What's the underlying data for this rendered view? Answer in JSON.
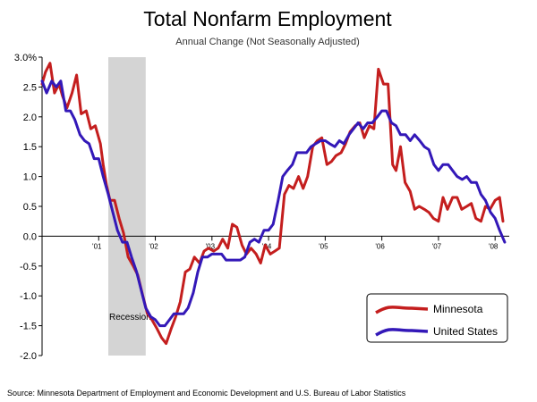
{
  "chart_data": {
    "type": "line",
    "title": "Total Nonfarm Employment",
    "subtitle": "Annual Change (Not Seasonally Adjusted)",
    "source": "Source: Minnesota Department of Employment and Economic Development and U.S. Bureau of Labor Statistics",
    "ylim": [
      -2.0,
      3.0
    ],
    "xlim": [
      2000.0,
      2008.25
    ],
    "y_ticks": [
      3.0,
      2.5,
      2.0,
      1.5,
      1.0,
      0.5,
      0.0,
      -0.5,
      -1.0,
      -1.5,
      -2.0
    ],
    "y_tick_labels": [
      "3.0%",
      "2.5",
      "2.0",
      "1.5",
      "1.0",
      "0.5",
      "0.0",
      "-0.5",
      "-1.0",
      "-1.5",
      "-2.0"
    ],
    "x_ticks": [
      2001,
      2002,
      2003,
      2004,
      2005,
      2006,
      2007,
      2008
    ],
    "x_tick_labels": [
      "'01",
      "'02",
      "'03",
      "'04",
      "'05",
      "'06",
      "'07",
      "'08"
    ],
    "recession": {
      "label": "Recession",
      "start": 2001.17,
      "end": 2001.83
    },
    "grid": false,
    "legend_position": "bottom-right",
    "series": [
      {
        "name": "Minnesota",
        "color": "#c41e1e",
        "points": [
          [
            2000.0,
            2.55
          ],
          [
            2000.06,
            2.75
          ],
          [
            2000.14,
            2.9
          ],
          [
            2000.22,
            2.4
          ],
          [
            2000.3,
            2.55
          ],
          [
            2000.36,
            2.35
          ],
          [
            2000.44,
            2.15
          ],
          [
            2000.53,
            2.4
          ],
          [
            2000.61,
            2.7
          ],
          [
            2000.69,
            2.05
          ],
          [
            2000.78,
            2.1
          ],
          [
            2000.86,
            1.8
          ],
          [
            2000.94,
            1.85
          ],
          [
            2001.03,
            1.55
          ],
          [
            2001.08,
            1.2
          ],
          [
            2001.14,
            0.85
          ],
          [
            2001.2,
            0.6
          ],
          [
            2001.28,
            0.6
          ],
          [
            2001.36,
            0.3
          ],
          [
            2001.44,
            0.05
          ],
          [
            2001.52,
            -0.35
          ],
          [
            2001.61,
            -0.5
          ],
          [
            2001.69,
            -0.65
          ],
          [
            2001.78,
            -1.0
          ],
          [
            2001.86,
            -1.3
          ],
          [
            2001.94,
            -1.4
          ],
          [
            2002.03,
            -1.55
          ],
          [
            2002.11,
            -1.7
          ],
          [
            2002.19,
            -1.8
          ],
          [
            2002.28,
            -1.55
          ],
          [
            2002.36,
            -1.35
          ],
          [
            2002.44,
            -1.1
          ],
          [
            2002.53,
            -0.6
          ],
          [
            2002.61,
            -0.55
          ],
          [
            2002.69,
            -0.35
          ],
          [
            2002.78,
            -0.45
          ],
          [
            2002.86,
            -0.25
          ],
          [
            2002.94,
            -0.2
          ],
          [
            2003.03,
            -0.25
          ],
          [
            2003.11,
            -0.2
          ],
          [
            2003.19,
            -0.05
          ],
          [
            2003.28,
            -0.2
          ],
          [
            2003.36,
            0.2
          ],
          [
            2003.44,
            0.15
          ],
          [
            2003.53,
            -0.15
          ],
          [
            2003.61,
            -0.3
          ],
          [
            2003.69,
            -0.2
          ],
          [
            2003.78,
            -0.3
          ],
          [
            2003.86,
            -0.45
          ],
          [
            2003.94,
            -0.15
          ],
          [
            2004.03,
            -0.3
          ],
          [
            2004.11,
            -0.25
          ],
          [
            2004.19,
            -0.2
          ],
          [
            2004.28,
            0.7
          ],
          [
            2004.36,
            0.85
          ],
          [
            2004.44,
            0.8
          ],
          [
            2004.53,
            1.0
          ],
          [
            2004.61,
            0.8
          ],
          [
            2004.69,
            1.0
          ],
          [
            2004.78,
            1.5
          ],
          [
            2004.86,
            1.6
          ],
          [
            2004.94,
            1.65
          ],
          [
            2005.03,
            1.2
          ],
          [
            2005.11,
            1.25
          ],
          [
            2005.19,
            1.35
          ],
          [
            2005.28,
            1.4
          ],
          [
            2005.36,
            1.55
          ],
          [
            2005.44,
            1.75
          ],
          [
            2005.53,
            1.85
          ],
          [
            2005.61,
            1.9
          ],
          [
            2005.69,
            1.65
          ],
          [
            2005.78,
            1.85
          ],
          [
            2005.86,
            1.8
          ],
          [
            2005.94,
            2.8
          ],
          [
            2006.03,
            2.55
          ],
          [
            2006.11,
            2.55
          ],
          [
            2006.19,
            1.2
          ],
          [
            2006.25,
            1.1
          ],
          [
            2006.33,
            1.5
          ],
          [
            2006.41,
            0.9
          ],
          [
            2006.5,
            0.75
          ],
          [
            2006.58,
            0.45
          ],
          [
            2006.66,
            0.5
          ],
          [
            2006.75,
            0.45
          ],
          [
            2006.83,
            0.4
          ],
          [
            2006.91,
            0.3
          ],
          [
            2007.0,
            0.25
          ],
          [
            2007.08,
            0.65
          ],
          [
            2007.16,
            0.45
          ],
          [
            2007.25,
            0.65
          ],
          [
            2007.33,
            0.65
          ],
          [
            2007.41,
            0.45
          ],
          [
            2007.5,
            0.5
          ],
          [
            2007.58,
            0.55
          ],
          [
            2007.66,
            0.3
          ],
          [
            2007.75,
            0.25
          ],
          [
            2007.83,
            0.5
          ],
          [
            2007.91,
            0.45
          ],
          [
            2008.0,
            0.6
          ],
          [
            2008.08,
            0.65
          ],
          [
            2008.14,
            0.25
          ]
        ]
      },
      {
        "name": "United States",
        "color": "#3318b8",
        "points": [
          [
            2000.0,
            2.6
          ],
          [
            2000.08,
            2.4
          ],
          [
            2000.17,
            2.6
          ],
          [
            2000.25,
            2.5
          ],
          [
            2000.33,
            2.6
          ],
          [
            2000.42,
            2.1
          ],
          [
            2000.5,
            2.1
          ],
          [
            2000.58,
            1.95
          ],
          [
            2000.67,
            1.7
          ],
          [
            2000.75,
            1.6
          ],
          [
            2000.83,
            1.55
          ],
          [
            2000.92,
            1.3
          ],
          [
            2001.0,
            1.3
          ],
          [
            2001.08,
            1.0
          ],
          [
            2001.17,
            0.7
          ],
          [
            2001.25,
            0.4
          ],
          [
            2001.33,
            0.1
          ],
          [
            2001.42,
            -0.1
          ],
          [
            2001.5,
            -0.1
          ],
          [
            2001.58,
            -0.35
          ],
          [
            2001.67,
            -0.6
          ],
          [
            2001.75,
            -0.9
          ],
          [
            2001.83,
            -1.2
          ],
          [
            2001.92,
            -1.35
          ],
          [
            2002.0,
            -1.4
          ],
          [
            2002.08,
            -1.5
          ],
          [
            2002.17,
            -1.5
          ],
          [
            2002.25,
            -1.4
          ],
          [
            2002.33,
            -1.3
          ],
          [
            2002.42,
            -1.3
          ],
          [
            2002.5,
            -1.3
          ],
          [
            2002.58,
            -1.2
          ],
          [
            2002.67,
            -0.95
          ],
          [
            2002.75,
            -0.6
          ],
          [
            2002.83,
            -0.35
          ],
          [
            2002.92,
            -0.35
          ],
          [
            2003.0,
            -0.3
          ],
          [
            2003.08,
            -0.3
          ],
          [
            2003.17,
            -0.3
          ],
          [
            2003.25,
            -0.4
          ],
          [
            2003.33,
            -0.4
          ],
          [
            2003.42,
            -0.4
          ],
          [
            2003.5,
            -0.4
          ],
          [
            2003.58,
            -0.35
          ],
          [
            2003.67,
            -0.1
          ],
          [
            2003.75,
            -0.05
          ],
          [
            2003.83,
            -0.1
          ],
          [
            2003.92,
            0.1
          ],
          [
            2004.0,
            0.1
          ],
          [
            2004.08,
            0.2
          ],
          [
            2004.17,
            0.6
          ],
          [
            2004.25,
            1.0
          ],
          [
            2004.33,
            1.1
          ],
          [
            2004.42,
            1.2
          ],
          [
            2004.5,
            1.4
          ],
          [
            2004.58,
            1.4
          ],
          [
            2004.67,
            1.4
          ],
          [
            2004.75,
            1.5
          ],
          [
            2004.83,
            1.55
          ],
          [
            2004.92,
            1.6
          ],
          [
            2005.0,
            1.6
          ],
          [
            2005.08,
            1.55
          ],
          [
            2005.17,
            1.5
          ],
          [
            2005.25,
            1.6
          ],
          [
            2005.33,
            1.55
          ],
          [
            2005.42,
            1.7
          ],
          [
            2005.5,
            1.8
          ],
          [
            2005.58,
            1.9
          ],
          [
            2005.67,
            1.8
          ],
          [
            2005.75,
            1.9
          ],
          [
            2005.83,
            1.9
          ],
          [
            2005.92,
            2.0
          ],
          [
            2006.0,
            2.1
          ],
          [
            2006.08,
            2.1
          ],
          [
            2006.17,
            1.9
          ],
          [
            2006.25,
            1.85
          ],
          [
            2006.33,
            1.7
          ],
          [
            2006.42,
            1.7
          ],
          [
            2006.5,
            1.6
          ],
          [
            2006.58,
            1.7
          ],
          [
            2006.67,
            1.6
          ],
          [
            2006.75,
            1.5
          ],
          [
            2006.83,
            1.45
          ],
          [
            2006.92,
            1.2
          ],
          [
            2007.0,
            1.1
          ],
          [
            2007.08,
            1.2
          ],
          [
            2007.17,
            1.2
          ],
          [
            2007.25,
            1.1
          ],
          [
            2007.33,
            1.0
          ],
          [
            2007.42,
            0.95
          ],
          [
            2007.5,
            1.0
          ],
          [
            2007.58,
            0.9
          ],
          [
            2007.67,
            0.9
          ],
          [
            2007.75,
            0.7
          ],
          [
            2007.83,
            0.6
          ],
          [
            2007.92,
            0.4
          ],
          [
            2008.0,
            0.3
          ],
          [
            2008.08,
            0.1
          ],
          [
            2008.17,
            -0.1
          ]
        ]
      }
    ]
  }
}
